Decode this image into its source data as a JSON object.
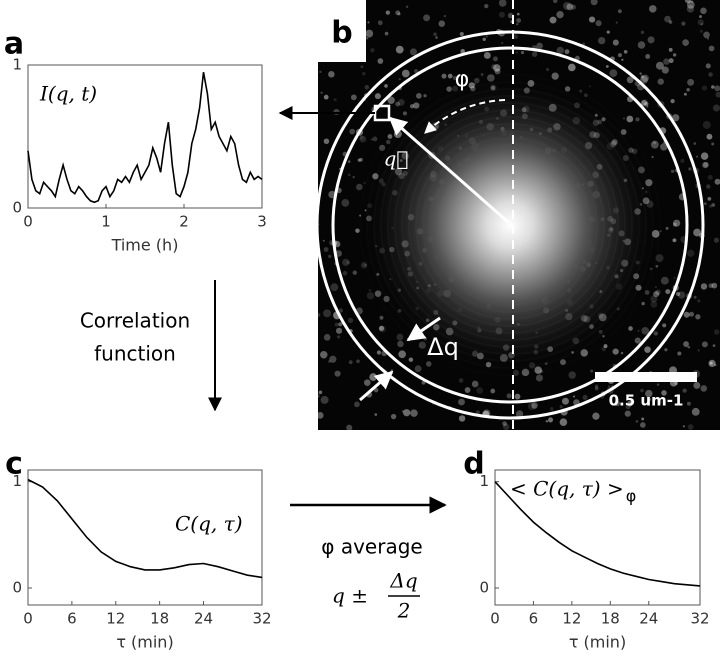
{
  "chart_data": [
    {
      "type": "line",
      "title": "I(q, t)",
      "xlabel": "Time (h)",
      "color": "#000000",
      "xlim": [
        0,
        3
      ],
      "ylim": [
        0,
        1
      ],
      "xticks": [
        0,
        1,
        2,
        3
      ],
      "yticks": [
        0,
        1
      ],
      "x": [
        0,
        0.05,
        0.1,
        0.15,
        0.2,
        0.25,
        0.3,
        0.35,
        0.4,
        0.45,
        0.5,
        0.55,
        0.6,
        0.65,
        0.7,
        0.75,
        0.8,
        0.85,
        0.9,
        0.95,
        1,
        1.05,
        1.1,
        1.15,
        1.2,
        1.25,
        1.3,
        1.35,
        1.4,
        1.45,
        1.5,
        1.55,
        1.6,
        1.65,
        1.7,
        1.75,
        1.8,
        1.85,
        1.9,
        1.95,
        2,
        2.05,
        2.1,
        2.15,
        2.2,
        2.25,
        2.3,
        2.35,
        2.4,
        2.45,
        2.5,
        2.55,
        2.6,
        2.65,
        2.7,
        2.75,
        2.8,
        2.85,
        2.9,
        2.95,
        3
      ],
      "values": [
        0.4,
        0.2,
        0.12,
        0.1,
        0.18,
        0.15,
        0.12,
        0.08,
        0.2,
        0.3,
        0.2,
        0.12,
        0.1,
        0.15,
        0.12,
        0.08,
        0.05,
        0.04,
        0.05,
        0.12,
        0.15,
        0.08,
        0.12,
        0.2,
        0.18,
        0.22,
        0.18,
        0.25,
        0.3,
        0.2,
        0.25,
        0.3,
        0.42,
        0.35,
        0.25,
        0.45,
        0.6,
        0.3,
        0.1,
        0.08,
        0.15,
        0.25,
        0.45,
        0.55,
        0.7,
        0.95,
        0.8,
        0.55,
        0.6,
        0.5,
        0.45,
        0.4,
        0.5,
        0.45,
        0.3,
        0.2,
        0.18,
        0.25,
        0.2,
        0.22,
        0.2
      ]
    },
    {
      "type": "line",
      "title": "C(q, τ)",
      "xlabel": "τ  (min)",
      "color": "#000000",
      "xlim": [
        0,
        32
      ],
      "ylim": [
        -0.16,
        1.11
      ],
      "xticks": [
        0,
        6,
        12,
        18,
        24,
        32
      ],
      "yticks": [
        0,
        1
      ],
      "x": [
        0,
        2,
        4,
        6,
        8,
        10,
        12,
        14,
        16,
        18,
        20,
        22,
        24,
        26,
        28,
        30,
        32
      ],
      "values": [
        1.02,
        0.95,
        0.82,
        0.65,
        0.48,
        0.34,
        0.25,
        0.2,
        0.17,
        0.17,
        0.19,
        0.22,
        0.23,
        0.2,
        0.16,
        0.12,
        0.1
      ]
    },
    {
      "type": "line",
      "title": "< C(q, τ) >",
      "title_sub": "φ",
      "xlabel": "τ (min)",
      "color": "#000000",
      "xlim": [
        0,
        32
      ],
      "ylim": [
        -0.16,
        1.11
      ],
      "xticks": [
        0,
        6,
        12,
        18,
        24,
        32
      ],
      "yticks": [
        0,
        1
      ],
      "x": [
        0,
        2,
        4,
        6,
        8,
        10,
        12,
        14,
        16,
        18,
        20,
        22,
        24,
        26,
        28,
        30,
        32
      ],
      "values": [
        1.0,
        0.87,
        0.74,
        0.62,
        0.52,
        0.43,
        0.35,
        0.29,
        0.23,
        0.18,
        0.14,
        0.11,
        0.08,
        0.06,
        0.04,
        0.03,
        0.02
      ]
    }
  ],
  "panel_labels": [
    "a",
    "b",
    "c",
    "d"
  ],
  "image": {
    "angle": "φ",
    "vector": "q⃗",
    "ring_width": "Δq",
    "scale_bar": "0.5 um-1"
  },
  "step1": [
    "Correlation",
    "function"
  ],
  "step2": {
    "text": "φ average",
    "lhs": "q ±",
    "numerator": "Δq",
    "denominator": "2"
  }
}
